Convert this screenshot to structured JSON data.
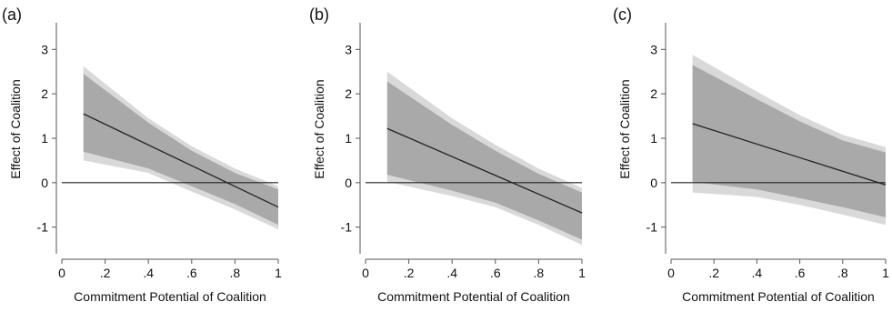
{
  "figure": {
    "colors": {
      "outer_band": "#d9d9d9",
      "inner_band": "#a9a9a9",
      "effect_line": "#222222",
      "zero_line": "#222222",
      "axis": "#555555"
    }
  },
  "chart_data": [
    {
      "type": "line",
      "panel_label": "(a)",
      "xlabel": "Commitment Potential of Coalition",
      "ylabel": "Effect of Coalition",
      "xlim": [
        0,
        1
      ],
      "ylim": [
        -1.6,
        3.6
      ],
      "xticks": [
        0,
        0.2,
        0.4,
        0.6,
        0.8,
        1
      ],
      "xtick_labels": [
        "0",
        ".2",
        ".4",
        ".6",
        ".8",
        "1"
      ],
      "yticks": [
        -1,
        0,
        1,
        2,
        3
      ],
      "ytick_labels": [
        "-1",
        "0",
        "1",
        "2",
        "3"
      ],
      "grid": false,
      "reference_line_y": 0,
      "series": [
        {
          "role": "effect",
          "x": [
            0.1,
            1
          ],
          "y": [
            1.55,
            -0.55
          ]
        },
        {
          "role": "ci_outer",
          "x": [
            0.1,
            0.4,
            0.6,
            0.8,
            1
          ],
          "upper": [
            2.62,
            1.45,
            0.82,
            0.32,
            -0.08
          ],
          "lower": [
            0.5,
            0.22,
            -0.2,
            -0.6,
            -1.05
          ]
        },
        {
          "role": "ci_inner",
          "x": [
            0.1,
            0.4,
            0.6,
            0.8,
            1
          ],
          "upper": [
            2.45,
            1.35,
            0.72,
            0.22,
            -0.15
          ],
          "lower": [
            0.7,
            0.32,
            -0.08,
            -0.48,
            -0.95
          ]
        }
      ]
    },
    {
      "type": "line",
      "panel_label": "(b)",
      "xlabel": "Commitment Potential of Coalition",
      "ylabel": "Effect of Coalition",
      "xlim": [
        0,
        1
      ],
      "ylim": [
        -1.6,
        3.6
      ],
      "xticks": [
        0,
        0.2,
        0.4,
        0.6,
        0.8,
        1
      ],
      "xtick_labels": [
        "0",
        ".2",
        ".4",
        ".6",
        ".8",
        "1"
      ],
      "yticks": [
        -1,
        0,
        1,
        2,
        3
      ],
      "ytick_labels": [
        "-1",
        "0",
        "1",
        "2",
        "3"
      ],
      "grid": false,
      "reference_line_y": 0,
      "series": [
        {
          "role": "effect",
          "x": [
            0.1,
            1
          ],
          "y": [
            1.22,
            -0.68
          ]
        },
        {
          "role": "ci_outer",
          "x": [
            0.1,
            0.4,
            0.6,
            0.8,
            1
          ],
          "upper": [
            2.5,
            1.45,
            0.85,
            0.32,
            -0.12
          ],
          "lower": [
            0.02,
            -0.3,
            -0.55,
            -0.95,
            -1.4
          ]
        },
        {
          "role": "ci_inner",
          "x": [
            0.1,
            0.4,
            0.6,
            0.8,
            1
          ],
          "upper": [
            2.28,
            1.3,
            0.72,
            0.2,
            -0.22
          ],
          "lower": [
            0.18,
            -0.18,
            -0.45,
            -0.85,
            -1.28
          ]
        }
      ]
    },
    {
      "type": "line",
      "panel_label": "(c)",
      "xlabel": "Commitment Potential of Coalition",
      "ylabel": "Effect of Coalition",
      "xlim": [
        0,
        1
      ],
      "ylim": [
        -1.6,
        3.6
      ],
      "xticks": [
        0,
        0.2,
        0.4,
        0.6,
        0.8,
        1
      ],
      "xtick_labels": [
        "0",
        ".2",
        ".4",
        ".6",
        ".8",
        "1"
      ],
      "yticks": [
        -1,
        0,
        1,
        2,
        3
      ],
      "ytick_labels": [
        "-1",
        "0",
        "1",
        "2",
        "3"
      ],
      "grid": false,
      "reference_line_y": 0,
      "series": [
        {
          "role": "effect",
          "x": [
            0.1,
            1
          ],
          "y": [
            1.33,
            -0.05
          ]
        },
        {
          "role": "ci_outer",
          "x": [
            0.1,
            0.4,
            0.6,
            0.8,
            1
          ],
          "upper": [
            2.88,
            2.05,
            1.52,
            1.08,
            0.8
          ],
          "lower": [
            -0.22,
            -0.32,
            -0.5,
            -0.72,
            -0.95
          ]
        },
        {
          "role": "ci_inner",
          "x": [
            0.1,
            0.4,
            0.6,
            0.8,
            1
          ],
          "upper": [
            2.65,
            1.88,
            1.38,
            0.95,
            0.68
          ],
          "lower": [
            0.02,
            -0.15,
            -0.35,
            -0.55,
            -0.78
          ]
        }
      ]
    }
  ]
}
